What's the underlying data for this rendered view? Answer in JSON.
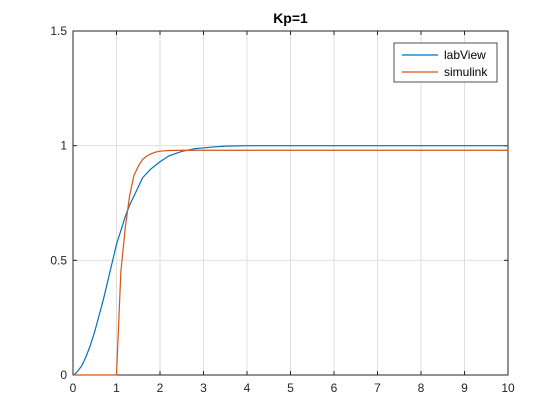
{
  "chart_data": {
    "type": "line",
    "title": "Kp=1",
    "xlabel": "",
    "ylabel": "",
    "xlim": [
      0,
      10
    ],
    "ylim": [
      0,
      1.5
    ],
    "xticks": [
      0,
      1,
      2,
      3,
      4,
      5,
      6,
      7,
      8,
      9,
      10
    ],
    "yticks": [
      0,
      0.5,
      1,
      1.5
    ],
    "xtick_labels": [
      "0",
      "1",
      "2",
      "3",
      "4",
      "5",
      "6",
      "7",
      "8",
      "9",
      "10"
    ],
    "ytick_labels": [
      "0",
      "0.5",
      "1",
      "1.5"
    ],
    "grid": true,
    "legend_position": "top-right",
    "series": [
      {
        "name": "labView",
        "color": "#0072BD",
        "x": [
          0,
          0.05,
          0.1,
          0.2,
          0.3,
          0.4,
          0.5,
          0.6,
          0.7,
          0.8,
          0.9,
          1.0,
          1.1,
          1.2,
          1.3,
          1.4,
          1.5,
          1.6,
          1.8,
          2.0,
          2.2,
          2.5,
          2.8,
          3.0,
          3.2,
          3.5,
          4.0,
          5.0,
          6.0,
          7.0,
          8.0,
          9.0,
          10.0
        ],
        "y": [
          0,
          0.005,
          0.015,
          0.04,
          0.08,
          0.13,
          0.19,
          0.26,
          0.33,
          0.41,
          0.49,
          0.57,
          0.63,
          0.69,
          0.74,
          0.78,
          0.82,
          0.86,
          0.9,
          0.93,
          0.955,
          0.975,
          0.987,
          0.99,
          0.994,
          0.998,
          1.0,
          1.0,
          1.0,
          1.0,
          1.0,
          1.0,
          1.0
        ]
      },
      {
        "name": "simulink",
        "color": "#D95319",
        "x": [
          0,
          1.0,
          1.1,
          1.2,
          1.3,
          1.4,
          1.5,
          1.6,
          1.7,
          1.8,
          1.9,
          2.0,
          2.2,
          2.5,
          3.0,
          4.0,
          5.0,
          6.0,
          7.0,
          8.0,
          9.0,
          10.0
        ],
        "y": [
          0,
          0,
          0.45,
          0.64,
          0.78,
          0.87,
          0.91,
          0.94,
          0.955,
          0.965,
          0.972,
          0.976,
          0.979,
          0.98,
          0.98,
          0.98,
          0.98,
          0.98,
          0.98,
          0.98,
          0.98,
          0.98
        ]
      }
    ]
  }
}
